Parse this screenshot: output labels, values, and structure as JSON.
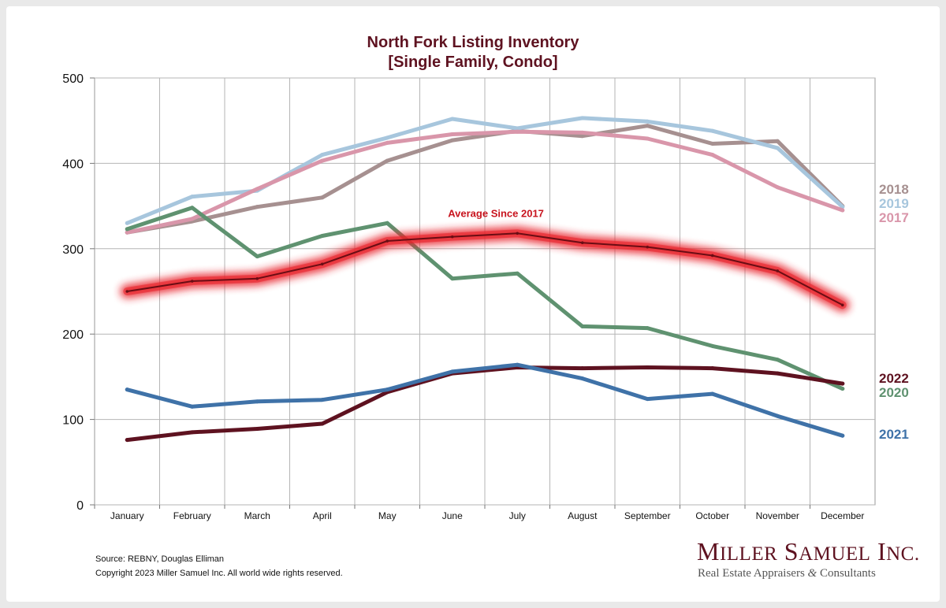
{
  "chart_data": {
    "type": "line",
    "title": "North Fork Listing Inventory",
    "subtitle": "[Single Family, Condo]",
    "categories": [
      "January",
      "February",
      "March",
      "April",
      "May",
      "June",
      "July",
      "August",
      "September",
      "October",
      "November",
      "December"
    ],
    "ylim": [
      0,
      500
    ],
    "yticks": [
      0,
      100,
      200,
      300,
      400,
      500
    ],
    "grid": true,
    "legend": "right, labels at series ends",
    "series": [
      {
        "name": "2018",
        "color": "#a69090",
        "values": [
          319,
          332,
          349,
          360,
          403,
          427,
          438,
          432,
          444,
          423,
          426,
          350
        ]
      },
      {
        "name": "2019",
        "color": "#a7c6dd",
        "values": [
          330,
          361,
          368,
          410,
          430,
          452,
          441,
          453,
          449,
          438,
          418,
          349
        ]
      },
      {
        "name": "2017",
        "color": "#d996aa",
        "values": [
          319,
          335,
          370,
          403,
          424,
          434,
          437,
          436,
          429,
          410,
          372,
          345
        ]
      },
      {
        "name": "2020",
        "color": "#5f9270",
        "values": [
          323,
          348,
          291,
          315,
          330,
          265,
          271,
          209,
          207,
          186,
          170,
          136
        ]
      },
      {
        "name": "2022",
        "color": "#5e1220",
        "values": [
          76,
          85,
          89,
          95,
          132,
          154,
          161,
          160,
          161,
          160,
          154,
          142
        ]
      },
      {
        "name": "2021",
        "color": "#3f72a8",
        "values": [
          135,
          115,
          121,
          123,
          135,
          156,
          164,
          148,
          124,
          130,
          104,
          81
        ]
      }
    ],
    "average": {
      "label": "Average  Since 2017",
      "color": "#c8141e",
      "line_color": "#6a0d14",
      "glow_color": "#e8232a",
      "values": [
        250,
        262,
        265,
        282,
        309,
        314,
        318,
        307,
        302,
        292,
        274,
        234
      ]
    }
  },
  "footer": {
    "source": "Source: REBNY, Douglas Elliman",
    "copyright": "Copyright 2023 Miller Samuel Inc.  All world wide rights reserved."
  },
  "brand": {
    "m": "M",
    "iller": "ILLER",
    "s": "S",
    "amuel": "AMUEL",
    "i": "I",
    "nc": "NC.",
    "tag_a": "Real Estate Appraisers ",
    "amp": "&",
    "tag_b": " Consultants"
  }
}
